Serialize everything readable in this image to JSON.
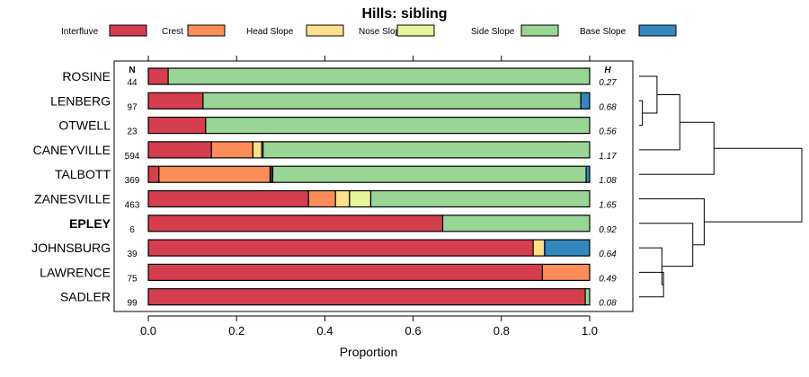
{
  "chart_data": {
    "type": "bar",
    "orientation": "horizontal",
    "stacked": true,
    "title": "Hills: sibling",
    "xlabel": "Proportion",
    "ylabel": "",
    "xlim": [
      0,
      1
    ],
    "x_ticks": [
      "0.0",
      "0.2",
      "0.4",
      "0.6",
      "0.8",
      "1.0"
    ],
    "x_tick_values": [
      0,
      0.2,
      0.4,
      0.6,
      0.8,
      1.0
    ],
    "n_header": "N",
    "h_header": "H",
    "legend_position": "top",
    "series": [
      {
        "name": "Interfluve",
        "color": "#D53E4F"
      },
      {
        "name": "Crest",
        "color": "#FC8D59"
      },
      {
        "name": "Head Slope",
        "color": "#FEE08B"
      },
      {
        "name": "Nose Slope",
        "color": "#E6F598"
      },
      {
        "name": "Side Slope",
        "color": "#99D594"
      },
      {
        "name": "Base Slope",
        "color": "#3288BD"
      }
    ],
    "rows": [
      {
        "label": "ROSINE",
        "bold": false,
        "n": "44",
        "h": "0.27",
        "values": [
          0.045,
          0,
          0,
          0,
          0.955,
          0
        ]
      },
      {
        "label": "LENBERG",
        "bold": false,
        "n": "97",
        "h": "0.68",
        "values": [
          0.124,
          0,
          0,
          0,
          0.856,
          0.02
        ]
      },
      {
        "label": "OTWELL",
        "bold": false,
        "n": "23",
        "h": "0.56",
        "values": [
          0.13,
          0,
          0,
          0,
          0.87,
          0
        ]
      },
      {
        "label": "CANEYVILLE",
        "bold": false,
        "n": "594",
        "h": "1.17",
        "values": [
          0.143,
          0.094,
          0.02,
          0.003,
          0.74,
          0
        ]
      },
      {
        "label": "TALBOTT",
        "bold": false,
        "n": "369",
        "h": "1.08",
        "values": [
          0.024,
          0.252,
          0.003,
          0.003,
          0.71,
          0.008
        ]
      },
      {
        "label": "ZANESVILLE",
        "bold": false,
        "n": "463",
        "h": "1.65",
        "values": [
          0.363,
          0.061,
          0.032,
          0.048,
          0.496,
          0
        ]
      },
      {
        "label": "EPLEY",
        "bold": true,
        "n": "6",
        "h": "0.92",
        "values": [
          0.667,
          0,
          0,
          0,
          0.333,
          0
        ]
      },
      {
        "label": "JOHNSBURG",
        "bold": false,
        "n": "39",
        "h": "0.64",
        "values": [
          0.872,
          0,
          0.026,
          0,
          0,
          0.102
        ]
      },
      {
        "label": "LAWRENCE",
        "bold": false,
        "n": "75",
        "h": "0.49",
        "values": [
          0.893,
          0.107,
          0,
          0,
          0,
          0
        ]
      },
      {
        "label": "SADLER",
        "bold": false,
        "n": "99",
        "h": "0.08",
        "values": [
          0.99,
          0,
          0,
          0,
          0.01,
          0
        ]
      }
    ],
    "dendrogram": {
      "order": [
        "ROSINE",
        "LENBERG",
        "OTWELL",
        "CANEYVILLE",
        "TALBOTT",
        "ZANESVILLE",
        "EPLEY",
        "JOHNSBURG",
        "LAWRENCE",
        "SADLER"
      ],
      "merges": [
        {
          "a": "r1",
          "b": "r2",
          "height": 0.02
        },
        {
          "a": "m0",
          "b": "r0",
          "height": 0.11
        },
        {
          "a": "m1",
          "b": "r3",
          "height": 0.25
        },
        {
          "a": "m2",
          "b": "r4",
          "height": 0.46
        },
        {
          "a": "r8",
          "b": "r9",
          "height": 0.15
        },
        {
          "a": "r7",
          "b": "m4",
          "height": 0.14
        },
        {
          "a": "r6",
          "b": "m5",
          "height": 0.33
        },
        {
          "a": "r5",
          "b": "m6",
          "height": 0.4
        },
        {
          "a": "m3",
          "b": "m7",
          "height": 1.0
        }
      ]
    }
  }
}
